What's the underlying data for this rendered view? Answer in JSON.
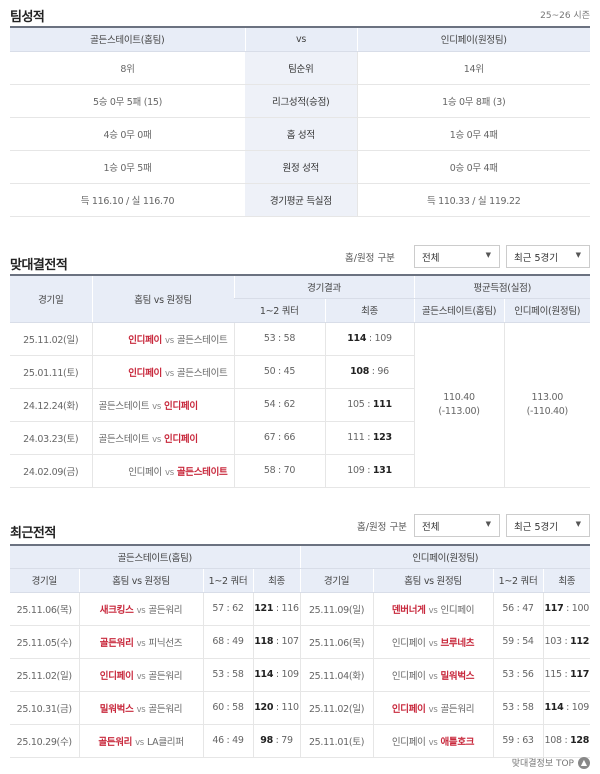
{
  "team_stats": {
    "title": "팀성적",
    "season": "25~26 시즌",
    "home": "골든스테이트(홈팀)",
    "vs": "vs",
    "away": "인디페이(원정팀)",
    "rows": [
      {
        "label": "팀순위",
        "home": "8위",
        "away": "14위"
      },
      {
        "label": "리그성적(승점)",
        "home": "5승 0무 5패 (15)",
        "away": "1승 0무 8패 (3)"
      },
      {
        "label": "홈 성적",
        "home": "4승 0무 0패",
        "away": "1승 0무 4패"
      },
      {
        "label": "원정 성적",
        "home": "1승 0무 5패",
        "away": "0승 0무 4패"
      },
      {
        "label": "경기평균 득실점",
        "home": "득 116.10 / 실 116.70",
        "away": "득 110.33 / 실 119.22"
      }
    ]
  },
  "filters": {
    "label": "홈/원정 구분",
    "side": "전체",
    "range": "최근 5경기"
  },
  "h2h": {
    "title": "맞대결전적",
    "headers": {
      "date": "경기일",
      "teams": "홈팀 vs 원정팀",
      "result": "경기결과",
      "half": "1~2 쿼터",
      "final": "최종",
      "avg": "평균득점(실점)",
      "avg_home": "골든스테이트(홈팀)",
      "avg_away": "인디페이(원정팀)"
    },
    "games": [
      {
        "date": "25.11.02(일)",
        "home": "인디페이",
        "away": "골든스테이트",
        "half": "53 : 58",
        "hs": "114",
        "as": "109",
        "winner": "home"
      },
      {
        "date": "25.01.11(토)",
        "home": "인디페이",
        "away": "골든스테이트",
        "half": "50 : 45",
        "hs": "108",
        "as": "96",
        "winner": "home"
      },
      {
        "date": "24.12.24(화)",
        "home": "골든스테이트",
        "away": "인디페이",
        "half": "54 : 62",
        "hs": "105",
        "as": "111",
        "winner": "away"
      },
      {
        "date": "24.03.23(토)",
        "home": "골든스테이트",
        "away": "인디페이",
        "half": "67 : 66",
        "hs": "111",
        "as": "123",
        "winner": "away"
      },
      {
        "date": "24.02.09(금)",
        "home": "인디페이",
        "away": "골든스테이트",
        "half": "58 : 70",
        "hs": "109",
        "as": "131",
        "winner": "away"
      }
    ],
    "avg_home": "110.40",
    "avg_home_conceded": "(-113.00)",
    "avg_away": "113.00",
    "avg_away_conceded": "(-110.40)"
  },
  "recent": {
    "title": "최근전적",
    "home_team": "골든스테이트(홈팀)",
    "away_team": "인디페이(원정팀)",
    "headers": {
      "date": "경기일",
      "teams": "홈팀 vs 원정팀",
      "half": "1~2 쿼터",
      "final": "최종"
    },
    "home_games": [
      {
        "date": "25.11.06(목)",
        "home": "새크킹스",
        "away": "골든워리",
        "half": "57 : 62",
        "hs": "121",
        "as": "116",
        "winner": "home"
      },
      {
        "date": "25.11.05(수)",
        "home": "골든워리",
        "away": "피닉선즈",
        "half": "68 : 49",
        "hs": "118",
        "as": "107",
        "winner": "home"
      },
      {
        "date": "25.11.02(일)",
        "home": "인디페이",
        "away": "골든워리",
        "half": "53 : 58",
        "hs": "114",
        "as": "109",
        "winner": "home"
      },
      {
        "date": "25.10.31(금)",
        "home": "밀워벅스",
        "away": "골든워리",
        "half": "60 : 58",
        "hs": "120",
        "as": "110",
        "winner": "home"
      },
      {
        "date": "25.10.29(수)",
        "home": "골든워리",
        "away": "LA클리퍼",
        "half": "46 : 49",
        "hs": "98",
        "as": "79",
        "winner": "home"
      }
    ],
    "away_games": [
      {
        "date": "25.11.09(일)",
        "home": "덴버너게",
        "away": "인디페이",
        "half": "56 : 47",
        "hs": "117",
        "as": "100",
        "winner": "home"
      },
      {
        "date": "25.11.06(목)",
        "home": "인디페이",
        "away": "브루네츠",
        "half": "59 : 54",
        "hs": "103",
        "as": "112",
        "winner": "away"
      },
      {
        "date": "25.11.04(화)",
        "home": "인디페이",
        "away": "밀워벅스",
        "half": "53 : 56",
        "hs": "115",
        "as": "117",
        "winner": "away"
      },
      {
        "date": "25.11.02(일)",
        "home": "인디페이",
        "away": "골든워리",
        "half": "53 : 58",
        "hs": "114",
        "as": "109",
        "winner": "home"
      },
      {
        "date": "25.11.01(토)",
        "home": "인디페이",
        "away": "애틀호크",
        "half": "59 : 63",
        "hs": "108",
        "as": "128",
        "winner": "away"
      }
    ]
  },
  "footer": {
    "top_link": "맞대결정보 TOP",
    "top_icon": "arrow-up-circle-icon"
  },
  "colors": {
    "win": "#c8283c",
    "header_bg": "#e8edf7"
  }
}
